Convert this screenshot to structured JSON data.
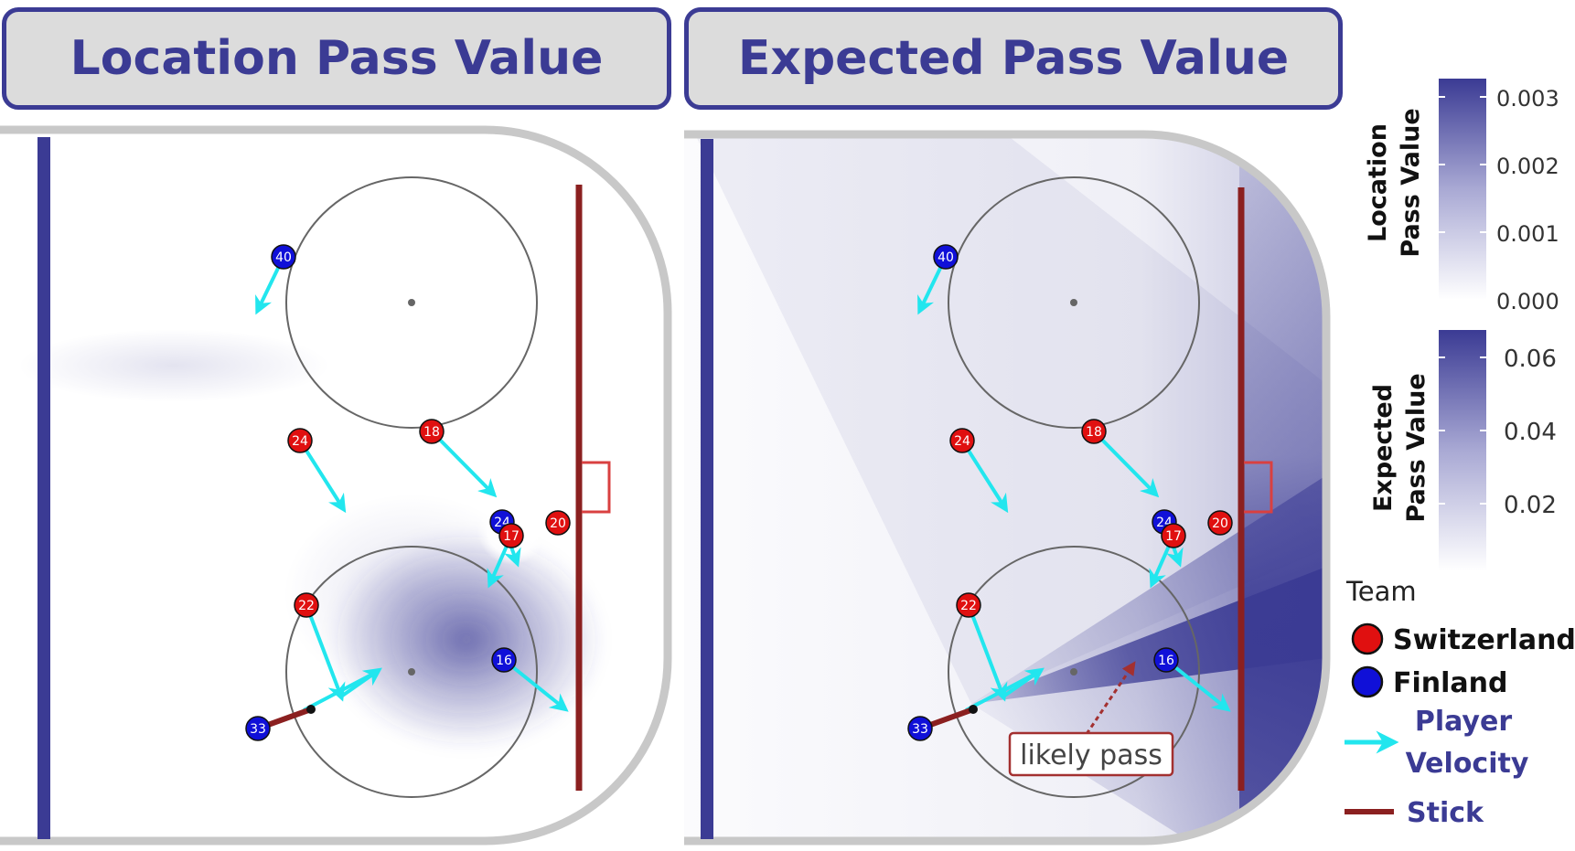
{
  "panels": {
    "left_title": "Location Pass Value",
    "right_title": "Expected Pass Value"
  },
  "annotation": {
    "likely_pass": "likely pass"
  },
  "colorbars": {
    "location": {
      "title_line1": "Location",
      "title_line2": "Pass Value",
      "ticks": [
        "0.003",
        "0.002",
        "0.001",
        "0.000"
      ]
    },
    "expected": {
      "title_line1": "Expected",
      "title_line2": "Pass Value",
      "ticks": [
        "0.06",
        "0.04",
        "0.02"
      ]
    }
  },
  "legend": {
    "team_title": "Team",
    "switzerland": "Switzerland",
    "finland": "Finland",
    "velocity_line1": "Player",
    "velocity_line2": "Velocity",
    "stick": "Stick"
  },
  "players": [
    {
      "number": "40",
      "team": "Finland"
    },
    {
      "number": "18",
      "team": "Switzerland"
    },
    {
      "number": "24",
      "team": "Switzerland"
    },
    {
      "number": "24",
      "team": "Finland"
    },
    {
      "number": "17",
      "team": "Switzerland"
    },
    {
      "number": "20",
      "team": "Switzerland"
    },
    {
      "number": "22",
      "team": "Switzerland"
    },
    {
      "number": "16",
      "team": "Finland"
    },
    {
      "number": "33",
      "team": "Finland"
    }
  ],
  "colors": {
    "switzerland": "#e01010",
    "finland": "#1010d8",
    "velocity": "#22e6ee",
    "stick": "#8b2020",
    "blue_line": "#3b3b94",
    "goal_line": "#8b2020",
    "heat": "#3b3b94",
    "boards": "#c8c8c8"
  }
}
